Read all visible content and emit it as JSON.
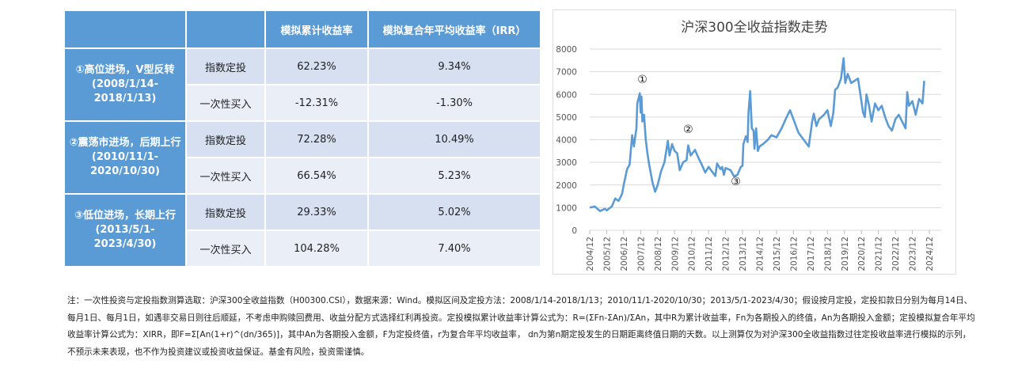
{
  "table": {
    "headers": [
      "",
      "",
      "模拟累计收益率",
      "模拟复合年平均收益率（IRR）"
    ],
    "groups": [
      {
        "label": "①高位进场，V型反转",
        "period": "(2008/1/14-2018/1/13)",
        "rows": [
          {
            "method": "指数定投",
            "cum": "62.23%",
            "irr": "9.34%"
          },
          {
            "method": "一次性买入",
            "cum": "-12.31%",
            "irr": "-1.30%"
          }
        ]
      },
      {
        "label": "②震荡市进场，后期上行",
        "period": "(2010/11/1-2020/10/30)",
        "rows": [
          {
            "method": "指数定投",
            "cum": "72.28%",
            "irr": "10.49%"
          },
          {
            "method": "一次性买入",
            "cum": "66.54%",
            "irr": "5.23%"
          }
        ]
      },
      {
        "label": "③低位进场，长期上行",
        "period": "(2013/5/1-2023/4/30)",
        "rows": [
          {
            "method": "指数定投",
            "cum": "29.33%",
            "irr": "5.02%"
          },
          {
            "method": "一次性买入",
            "cum": "104.28%",
            "irr": "7.40%"
          }
        ]
      }
    ]
  },
  "chart_data": {
    "type": "line",
    "title": "沪深300全收益指数走势",
    "ylim": [
      0,
      8000
    ],
    "yticks": [
      0,
      1000,
      2000,
      3000,
      4000,
      5000,
      6000,
      7000,
      8000
    ],
    "xticks": [
      "2004/12",
      "2005/12",
      "2006/12",
      "2007/12",
      "2008/12",
      "2009/12",
      "2010/12",
      "2011/12",
      "2012/12",
      "2013/12",
      "2014/12",
      "2015/12",
      "2016/12",
      "2017/12",
      "2018/12",
      "2019/12",
      "2020/12",
      "2021/12",
      "2022/12",
      "2023/12",
      "2024/12"
    ],
    "color": "#5b9bd5",
    "annotations": [
      {
        "text": "①",
        "t": 3.1,
        "v": 6500
      },
      {
        "text": "②",
        "t": 5.8,
        "v": 4300
      },
      {
        "text": "③",
        "t": 8.6,
        "v": 2000
      }
    ],
    "series": [
      {
        "name": "沪深300全收益指数",
        "t_years_since_2004_12": [
          0,
          0.3,
          0.6,
          0.9,
          1.0,
          1.3,
          1.5,
          1.7,
          1.9,
          2.0,
          2.2,
          2.35,
          2.5,
          2.6,
          2.75,
          2.8,
          2.95,
          3.0,
          3.05,
          3.1,
          3.2,
          3.3,
          3.4,
          3.5,
          3.7,
          3.85,
          4.0,
          4.2,
          4.4,
          4.6,
          4.7,
          4.85,
          5.0,
          5.15,
          5.3,
          5.5,
          5.7,
          5.8,
          5.95,
          6.2,
          6.4,
          6.6,
          6.8,
          7.0,
          7.2,
          7.4,
          7.5,
          7.7,
          7.8,
          7.9,
          8.0,
          8.3,
          8.5,
          8.7,
          8.9,
          9.0,
          9.05,
          9.2,
          9.3,
          9.35,
          9.45,
          9.55,
          9.65,
          9.7,
          9.8,
          9.9,
          10.0,
          10.2,
          10.5,
          10.7,
          11.0,
          11.3,
          11.6,
          11.8,
          12.0,
          12.3,
          12.6,
          12.9,
          13.1,
          13.2,
          13.35,
          13.5,
          13.8,
          14.0,
          14.2,
          14.35,
          14.45,
          14.6,
          14.8,
          14.95,
          15.05,
          15.2,
          15.4,
          15.6,
          15.8,
          15.9,
          16.1,
          16.2,
          16.3,
          16.45,
          16.6,
          16.8,
          17.0,
          17.2,
          17.4,
          17.6,
          17.8,
          18.0,
          18.2,
          18.4,
          18.6,
          18.7,
          18.8,
          19.0,
          19.2,
          19.4,
          19.6,
          19.7
        ],
        "values": [
          1000,
          1050,
          850,
          950,
          880,
          1050,
          1400,
          1300,
          1600,
          2000,
          2700,
          2900,
          4200,
          3700,
          4500,
          5600,
          6050,
          5200,
          5900,
          4800,
          5100,
          4000,
          3400,
          2900,
          2100,
          1700,
          2000,
          2600,
          3000,
          3950,
          3300,
          3800,
          3500,
          3400,
          2650,
          3000,
          3100,
          3750,
          3300,
          3550,
          3200,
          2900,
          2550,
          2800,
          2600,
          2400,
          2950,
          2700,
          2800,
          2450,
          2750,
          2650,
          2380,
          2450,
          2800,
          2850,
          3800,
          4150,
          3900,
          5200,
          6150,
          4500,
          4400,
          3600,
          4500,
          3500,
          3700,
          3800,
          4000,
          4200,
          4100,
          4500,
          5000,
          5300,
          4900,
          4300,
          4000,
          3700,
          4800,
          5150,
          4600,
          4900,
          5100,
          5300,
          4600,
          5200,
          6200,
          6300,
          6700,
          7600,
          6500,
          6900,
          6500,
          6600,
          6700,
          6200,
          5200,
          5000,
          6000,
          5500,
          4800,
          5600,
          5300,
          5500,
          5000,
          4600,
          4400,
          4900,
          5100,
          4800,
          4500,
          6100,
          5500,
          5700,
          5100,
          5800,
          5600,
          6600
        ]
      }
    ]
  },
  "note": "注：一次性投资与定投指数测算选取：沪深300全收益指数（H00300.CSI），数据来源：Wind。模拟区间及定投方法：2008/1/14-2018/1/13；2010/11/1-2020/10/30；2013/5/1-2023/4/30；假设按月定投，定投扣款日分别为每月14日、每月1日、每月1日，如遇非交易日则往后顺延，不考虑申购赎回费用、收益分配方式选择红利再投资。定投模拟累计收益率计算公式为：R=(ΣFn-ΣAn)/ΣAn，其中R为累计收益率，Fn为各期投入的终值，An为各期投入金额；定投模拟复合年平均收益率计算公式为：XIRR，即F=Σ[An(1+r)^(dn/365)]，其中An为各期投入金额，F为定投终值，r为复合年平均收益率， dn为第n期定投发生的日期距离终值日期的天数。以上测算仅为对沪深300全收益指数过往定投收益率进行模拟的示列，不预示未来表现，也不作为投资建议或投资收益保证。基金有风险，投资需谨慎。"
}
